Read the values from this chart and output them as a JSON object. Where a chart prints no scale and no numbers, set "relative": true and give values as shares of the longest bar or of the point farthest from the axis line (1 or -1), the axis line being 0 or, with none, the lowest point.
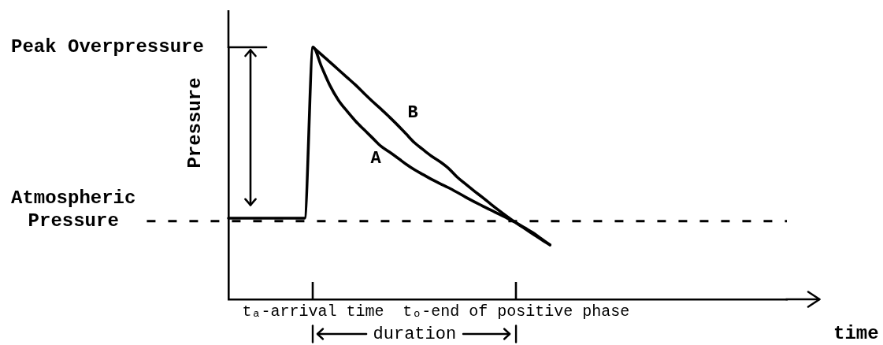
{
  "chart_data": {
    "type": "line",
    "relative": true,
    "xlabel": "time",
    "ylabel": "Pressure",
    "categories": [
      null,
      null,
      null,
      null,
      null,
      null,
      null,
      null,
      null,
      null,
      "tₐ-arrival time",
      null,
      null,
      null,
      null,
      null,
      null,
      null,
      null,
      null,
      null,
      null,
      null,
      null,
      null,
      null,
      null,
      null,
      null,
      null,
      null,
      null,
      null,
      null,
      "tₒ-end of positive phase",
      null,
      null,
      null,
      null,
      null,
      null,
      null,
      null,
      null,
      null,
      null,
      null,
      null,
      null,
      null,
      null,
      null,
      null,
      null,
      null,
      null,
      null,
      null,
      null,
      null,
      null,
      null,
      null,
      null,
      null,
      null,
      null
    ],
    "series": [
      {
        "name": "A",
        "color": "#000000",
        "values": [
          0.322,
          0.322,
          0.322,
          0.322,
          0.322,
          0.322,
          0.322,
          0.322,
          0.322,
          0.322,
          1,
          0.923,
          0.848,
          0.79,
          0.747,
          0.708,
          0.674,
          0.641,
          0.608,
          0.585,
          0.561,
          0.536,
          0.514,
          0.495,
          0.476,
          0.459,
          0.443,
          0.425,
          0.406,
          0.388,
          0.371,
          0.354,
          0.338,
          0.321,
          0.304,
          0.284,
          0.264,
          0.24,
          0.216,
          null,
          null,
          null,
          null,
          null,
          null,
          null,
          null,
          null,
          null,
          null,
          null,
          null,
          null,
          null,
          null,
          null,
          null,
          null,
          null,
          null,
          null,
          null,
          null,
          null,
          null,
          null,
          null
        ]
      },
      {
        "name": "B",
        "color": "#000000",
        "values": [
          null,
          null,
          null,
          null,
          null,
          null,
          null,
          null,
          null,
          null,
          1,
          0.971,
          0.941,
          0.911,
          0.881,
          0.851,
          0.818,
          0.786,
          0.756,
          0.724,
          0.691,
          0.656,
          0.621,
          0.594,
          0.568,
          0.546,
          0.52,
          0.486,
          0.458,
          0.431,
          0.405,
          0.378,
          0.352,
          0.327,
          0.303,
          0.281,
          0.259,
          0.237,
          0.216,
          null,
          null,
          null,
          null,
          null,
          null,
          null,
          null,
          null,
          null,
          null,
          null,
          null,
          null,
          null,
          null,
          null,
          null,
          null,
          null,
          null,
          null,
          null,
          null,
          null,
          null,
          null,
          null
        ]
      }
    ],
    "ref_lines": [
      {
        "axis": "y",
        "value": 0.31,
        "label": "Atmospheric Pressure",
        "color": "#000000",
        "line_style": "dashed"
      }
    ],
    "annotations": [
      "Peak Overpressure",
      "duration"
    ],
    "grid": false,
    "legend": false,
    "marker": "none",
    "line_style": "solid"
  }
}
